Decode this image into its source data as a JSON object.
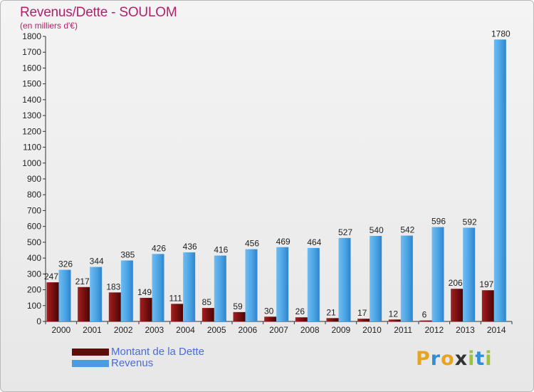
{
  "title": "Revenus/Dette - SOULOM",
  "subtitle": "(en milliers d'€)",
  "logo": {
    "text": "Proxiti",
    "letters": [
      "P",
      "r",
      "o",
      "x",
      "i",
      "t",
      "i"
    ],
    "colors": [
      "#e8a41c",
      "#2f8fd8",
      "#e8a41c",
      "#333333",
      "#9bc43a",
      "#2f8fd8",
      "#9bc43a"
    ]
  },
  "colors": {
    "dette": "#7a1010",
    "revenus": "#4ea6e6",
    "dette_legend": "#5e0c0c",
    "revenus_legend": "#4a9be0"
  },
  "chart_data": {
    "type": "bar",
    "title": "Revenus/Dette - SOULOM",
    "ylabel": "(en milliers d'€)",
    "categories": [
      "2000",
      "2001",
      "2002",
      "2003",
      "2004",
      "2005",
      "2006",
      "2007",
      "2008",
      "2009",
      "2010",
      "2011",
      "2012",
      "2013",
      "2014"
    ],
    "series": [
      {
        "name": "Montant de la Dette",
        "values": [
          247,
          217,
          183,
          149,
          111,
          85,
          59,
          30,
          26,
          21,
          17,
          12,
          6,
          206,
          197
        ]
      },
      {
        "name": "Revenus",
        "values": [
          326,
          344,
          385,
          426,
          436,
          416,
          456,
          469,
          464,
          527,
          540,
          542,
          596,
          592,
          1780
        ]
      }
    ],
    "ylim": [
      0,
      1800
    ],
    "yticks": [
      "0",
      "100",
      "200",
      "300",
      "400",
      "500",
      "600",
      "700",
      "800",
      "900",
      "1000",
      "1100",
      "1200",
      "1300",
      "1400",
      "1500",
      "1600",
      "1700",
      "1800"
    ],
    "legend": "bottom-left",
    "grid": false
  }
}
